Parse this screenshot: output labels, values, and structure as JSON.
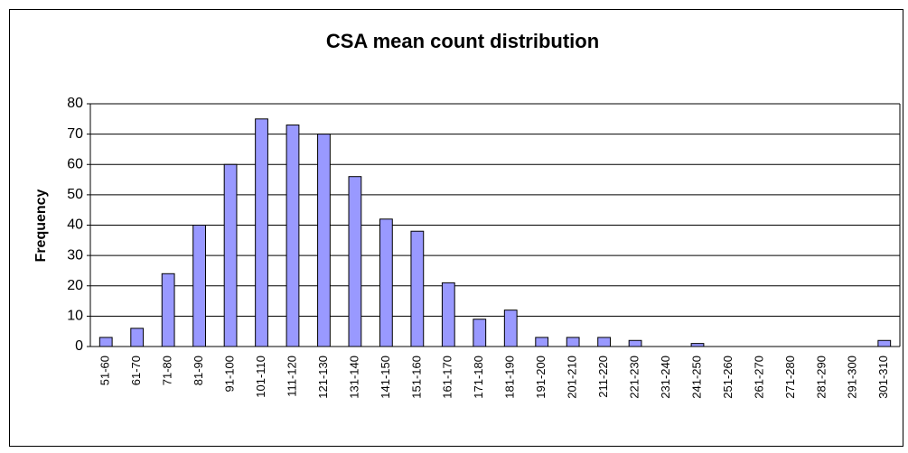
{
  "chart_data": {
    "type": "bar",
    "title": "CSA mean count distribution",
    "ylabel": "Frequency",
    "categories": [
      "51-60",
      "61-70",
      "71-80",
      "81-90",
      "91-100",
      "101-110",
      "111-120",
      "121-130",
      "131-140",
      "141-150",
      "151-160",
      "161-170",
      "171-180",
      "181-190",
      "191-200",
      "201-210",
      "211-220",
      "221-230",
      "231-240",
      "241-250",
      "251-260",
      "261-270",
      "271-280",
      "281-290",
      "291-300",
      "301-310"
    ],
    "values": [
      3,
      6,
      24,
      40,
      60,
      75,
      73,
      70,
      56,
      42,
      38,
      21,
      9,
      12,
      3,
      3,
      3,
      2,
      0,
      1,
      0,
      0,
      0,
      0,
      0,
      2
    ],
    "color": "#9999ff",
    "ylim": [
      0,
      80
    ],
    "yticks": [
      0,
      10,
      20,
      30,
      40,
      50,
      60,
      70,
      80
    ],
    "grid": true
  }
}
